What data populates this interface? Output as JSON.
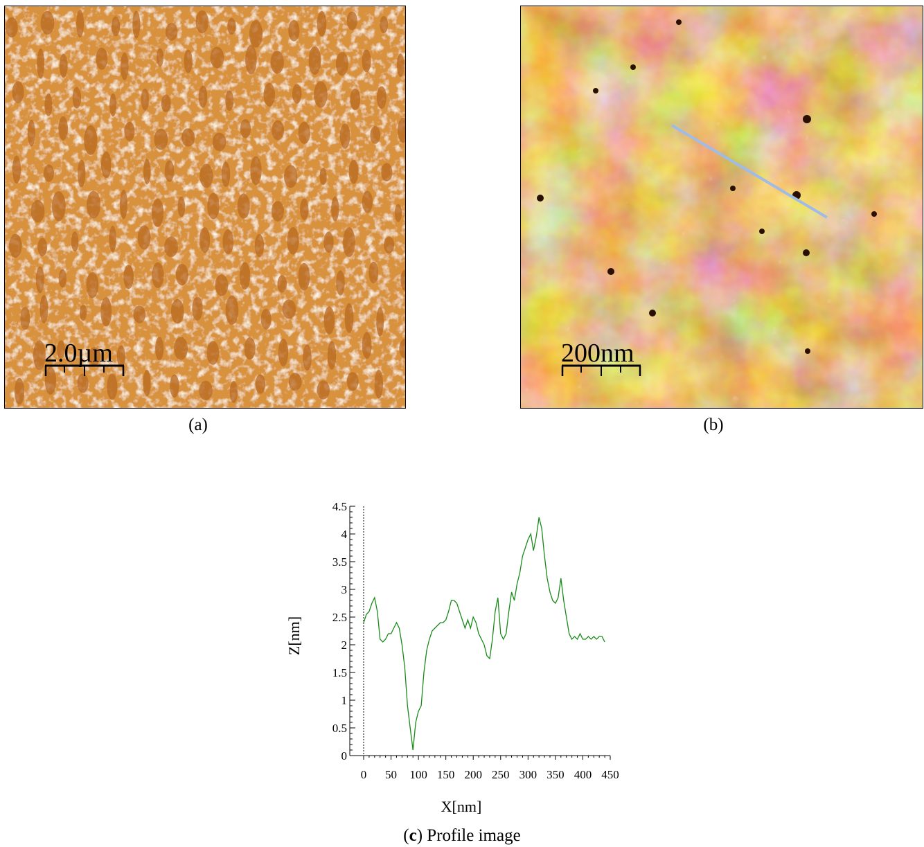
{
  "panels": [
    {
      "caption": "(a)",
      "scale_label": "2.0µm"
    },
    {
      "caption": "(b)",
      "scale_label": "200nm"
    }
  ],
  "caption_c": {
    "prefix": "(",
    "letter": "c",
    "suffix": ") Profile image"
  },
  "colors": {
    "afm_dark": "#7a3a08",
    "afm_mid": "#c8782a",
    "afm_light": "#f7e3bc",
    "profile_line": "#1a8a1a",
    "scan_line": "#9fbbe8"
  },
  "chart_data": {
    "type": "line",
    "title": "",
    "xlabel": "X[nm]",
    "ylabel": "Z[nm]",
    "xlim": [
      0,
      450
    ],
    "ylim": [
      0,
      4.5
    ],
    "xticks": [
      "0",
      "50",
      "100",
      "150",
      "200",
      "250",
      "300",
      "350",
      "400",
      "450"
    ],
    "yticks": [
      "0",
      "0.5",
      "1",
      "1.5",
      "2",
      "2.5",
      "3",
      "3.5",
      "4",
      "4.5"
    ],
    "grid": false,
    "x": [
      0,
      5,
      10,
      15,
      20,
      25,
      30,
      35,
      40,
      45,
      50,
      55,
      60,
      65,
      70,
      75,
      80,
      85,
      90,
      95,
      100,
      105,
      110,
      115,
      120,
      125,
      130,
      135,
      140,
      145,
      150,
      155,
      160,
      165,
      170,
      175,
      180,
      185,
      190,
      195,
      200,
      205,
      210,
      215,
      220,
      225,
      230,
      235,
      240,
      245,
      250,
      255,
      260,
      265,
      270,
      275,
      280,
      285,
      290,
      295,
      300,
      305,
      310,
      315,
      320,
      325,
      330,
      335,
      340,
      345,
      350,
      355,
      360,
      365,
      370,
      375,
      380,
      385,
      390,
      395,
      400,
      405,
      410,
      415,
      420,
      425,
      430,
      435,
      440
    ],
    "series": [
      {
        "values": [
          2.4,
          2.55,
          2.6,
          2.75,
          2.85,
          2.6,
          2.1,
          2.05,
          2.1,
          2.2,
          2.2,
          2.3,
          2.4,
          2.3,
          2.0,
          1.6,
          0.9,
          0.5,
          0.1,
          0.6,
          0.8,
          0.9,
          1.5,
          1.9,
          2.1,
          2.25,
          2.3,
          2.35,
          2.4,
          2.4,
          2.45,
          2.6,
          2.8,
          2.8,
          2.75,
          2.6,
          2.45,
          2.3,
          2.45,
          2.3,
          2.5,
          2.4,
          2.2,
          2.1,
          2.0,
          1.8,
          1.75,
          2.1,
          2.6,
          2.85,
          2.2,
          2.1,
          2.2,
          2.6,
          2.95,
          2.8,
          3.1,
          3.3,
          3.6,
          3.75,
          3.9,
          4.0,
          3.7,
          3.95,
          4.3,
          4.1,
          3.6,
          3.2,
          2.95,
          2.8,
          2.75,
          2.85,
          3.2,
          2.8,
          2.5,
          2.2,
          2.1,
          2.15,
          2.1,
          2.2,
          2.1,
          2.1,
          2.15,
          2.1,
          2.15,
          2.1,
          2.15,
          2.15,
          2.05
        ]
      }
    ]
  }
}
